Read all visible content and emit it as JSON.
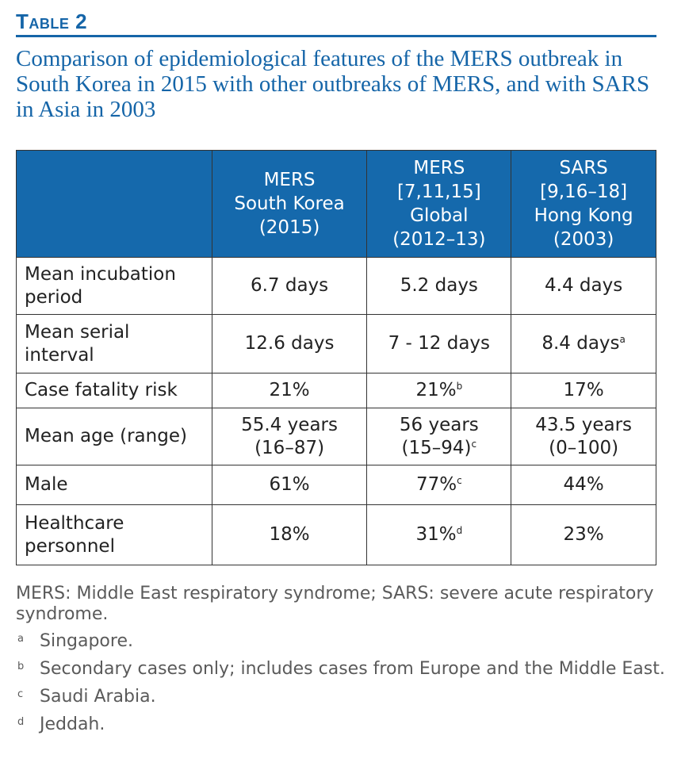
{
  "table_label": "Table 2",
  "caption": "Comparison of epidemiological features of the MERS outbreak in South Korea in 2015 with other outbreaks of MERS, and with SARS in Asia in 2003",
  "columns": [
    {
      "lines": [
        "MERS",
        "South Korea",
        "(2015)"
      ]
    },
    {
      "lines": [
        "MERS",
        "[7,11,15]",
        "Global",
        "(2012–13)"
      ]
    },
    {
      "lines": [
        "SARS",
        "[9,16–18]",
        "Hong Kong",
        "(2003)"
      ]
    }
  ],
  "rows": [
    {
      "label": [
        "Mean incubation",
        "period"
      ],
      "cells": [
        {
          "lines": [
            "6.7 days"
          ],
          "sup": ""
        },
        {
          "lines": [
            "5.2 days"
          ],
          "sup": ""
        },
        {
          "lines": [
            "4.4 days"
          ],
          "sup": ""
        }
      ]
    },
    {
      "label": [
        "Mean serial",
        "interval"
      ],
      "cells": [
        {
          "lines": [
            "12.6 days"
          ],
          "sup": ""
        },
        {
          "lines": [
            "7 - 12 days"
          ],
          "sup": ""
        },
        {
          "lines": [
            "8.4 days"
          ],
          "sup": "a"
        }
      ]
    },
    {
      "label": [
        "Case fatality risk"
      ],
      "cells": [
        {
          "lines": [
            "21%"
          ],
          "sup": ""
        },
        {
          "lines": [
            "21%"
          ],
          "sup": "b"
        },
        {
          "lines": [
            "17%"
          ],
          "sup": ""
        }
      ]
    },
    {
      "label": [
        "Mean age (range)"
      ],
      "cells": [
        {
          "lines": [
            "55.4 years",
            "(16–87)"
          ],
          "sup": ""
        },
        {
          "lines": [
            "56 years",
            "(15–94)"
          ],
          "sup": "c"
        },
        {
          "lines": [
            "43.5 years",
            "(0–100)"
          ],
          "sup": ""
        }
      ]
    },
    {
      "label": [
        "Male"
      ],
      "cells": [
        {
          "lines": [
            "61%"
          ],
          "sup": ""
        },
        {
          "lines": [
            "77%"
          ],
          "sup": "c"
        },
        {
          "lines": [
            "44%"
          ],
          "sup": ""
        }
      ]
    },
    {
      "label": [
        "Healthcare",
        "personnel"
      ],
      "cells": [
        {
          "lines": [
            "18%"
          ],
          "sup": ""
        },
        {
          "lines": [
            "31%"
          ],
          "sup": "d"
        },
        {
          "lines": [
            "23%"
          ],
          "sup": ""
        }
      ]
    }
  ],
  "abbreviations": "MERS: Middle East respiratory syndrome; SARS: severe acute respiratory syndrome.",
  "footnotes": [
    {
      "mark": "a",
      "text": "Singapore."
    },
    {
      "mark": "b",
      "text": "Secondary cases only; includes cases from Europe and the Middle East."
    },
    {
      "mark": "c",
      "text": "Saudi Arabia."
    },
    {
      "mark": "d",
      "text": "Jeddah."
    }
  ],
  "colors": {
    "accent": "#1565a8",
    "header_bg": "#1569ac",
    "footnote_text": "#5a5a5a"
  }
}
